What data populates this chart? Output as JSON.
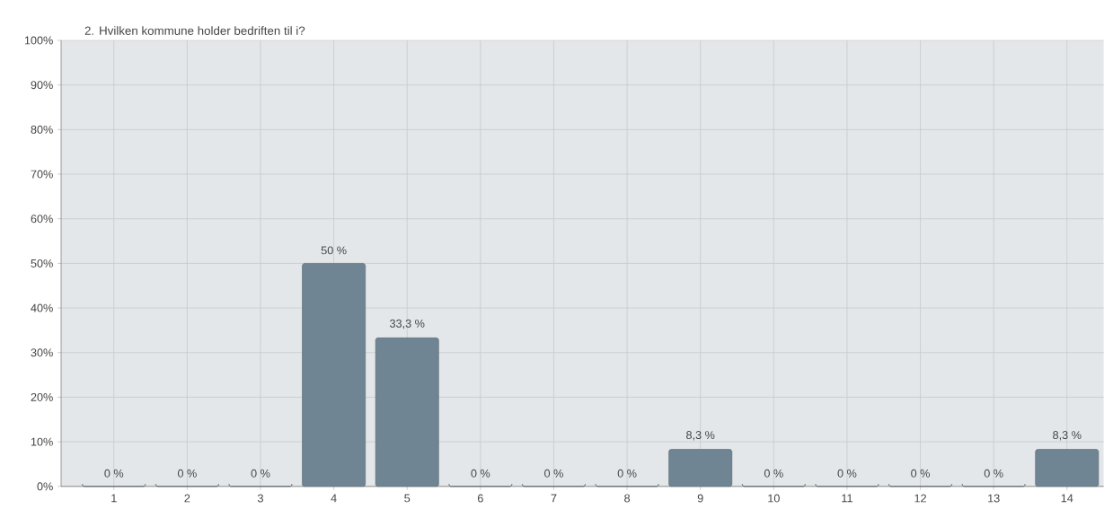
{
  "chart_data": {
    "type": "bar",
    "title": "2. Hvilken kommune holder bedriften til i?",
    "categories": [
      "1",
      "2",
      "3",
      "4",
      "5",
      "6",
      "7",
      "8",
      "9",
      "10",
      "11",
      "12",
      "13",
      "14"
    ],
    "values": [
      0,
      0,
      0,
      50,
      33.3,
      0,
      0,
      0,
      8.3,
      0,
      0,
      0,
      0,
      8.3
    ],
    "value_labels": [
      "0 %",
      "0 %",
      "0 %",
      "50 %",
      "33,3 %",
      "0 %",
      "0 %",
      "0 %",
      "8,3 %",
      "0 %",
      "0 %",
      "0 %",
      "0 %",
      "8,3 %"
    ],
    "color": "#6f8593",
    "ylim": [
      0,
      100
    ],
    "yticks": [
      {
        "value": 0,
        "label": "0%"
      },
      {
        "value": 10,
        "label": "10%"
      },
      {
        "value": 20,
        "label": "20%"
      },
      {
        "value": 30,
        "label": "30%"
      },
      {
        "value": 40,
        "label": "40%"
      },
      {
        "value": 50,
        "label": "50%"
      },
      {
        "value": 60,
        "label": "60%"
      },
      {
        "value": 70,
        "label": "70%"
      },
      {
        "value": 80,
        "label": "80%"
      },
      {
        "value": 90,
        "label": "90%"
      },
      {
        "value": 100,
        "label": "100%"
      }
    ],
    "grid": true
  }
}
